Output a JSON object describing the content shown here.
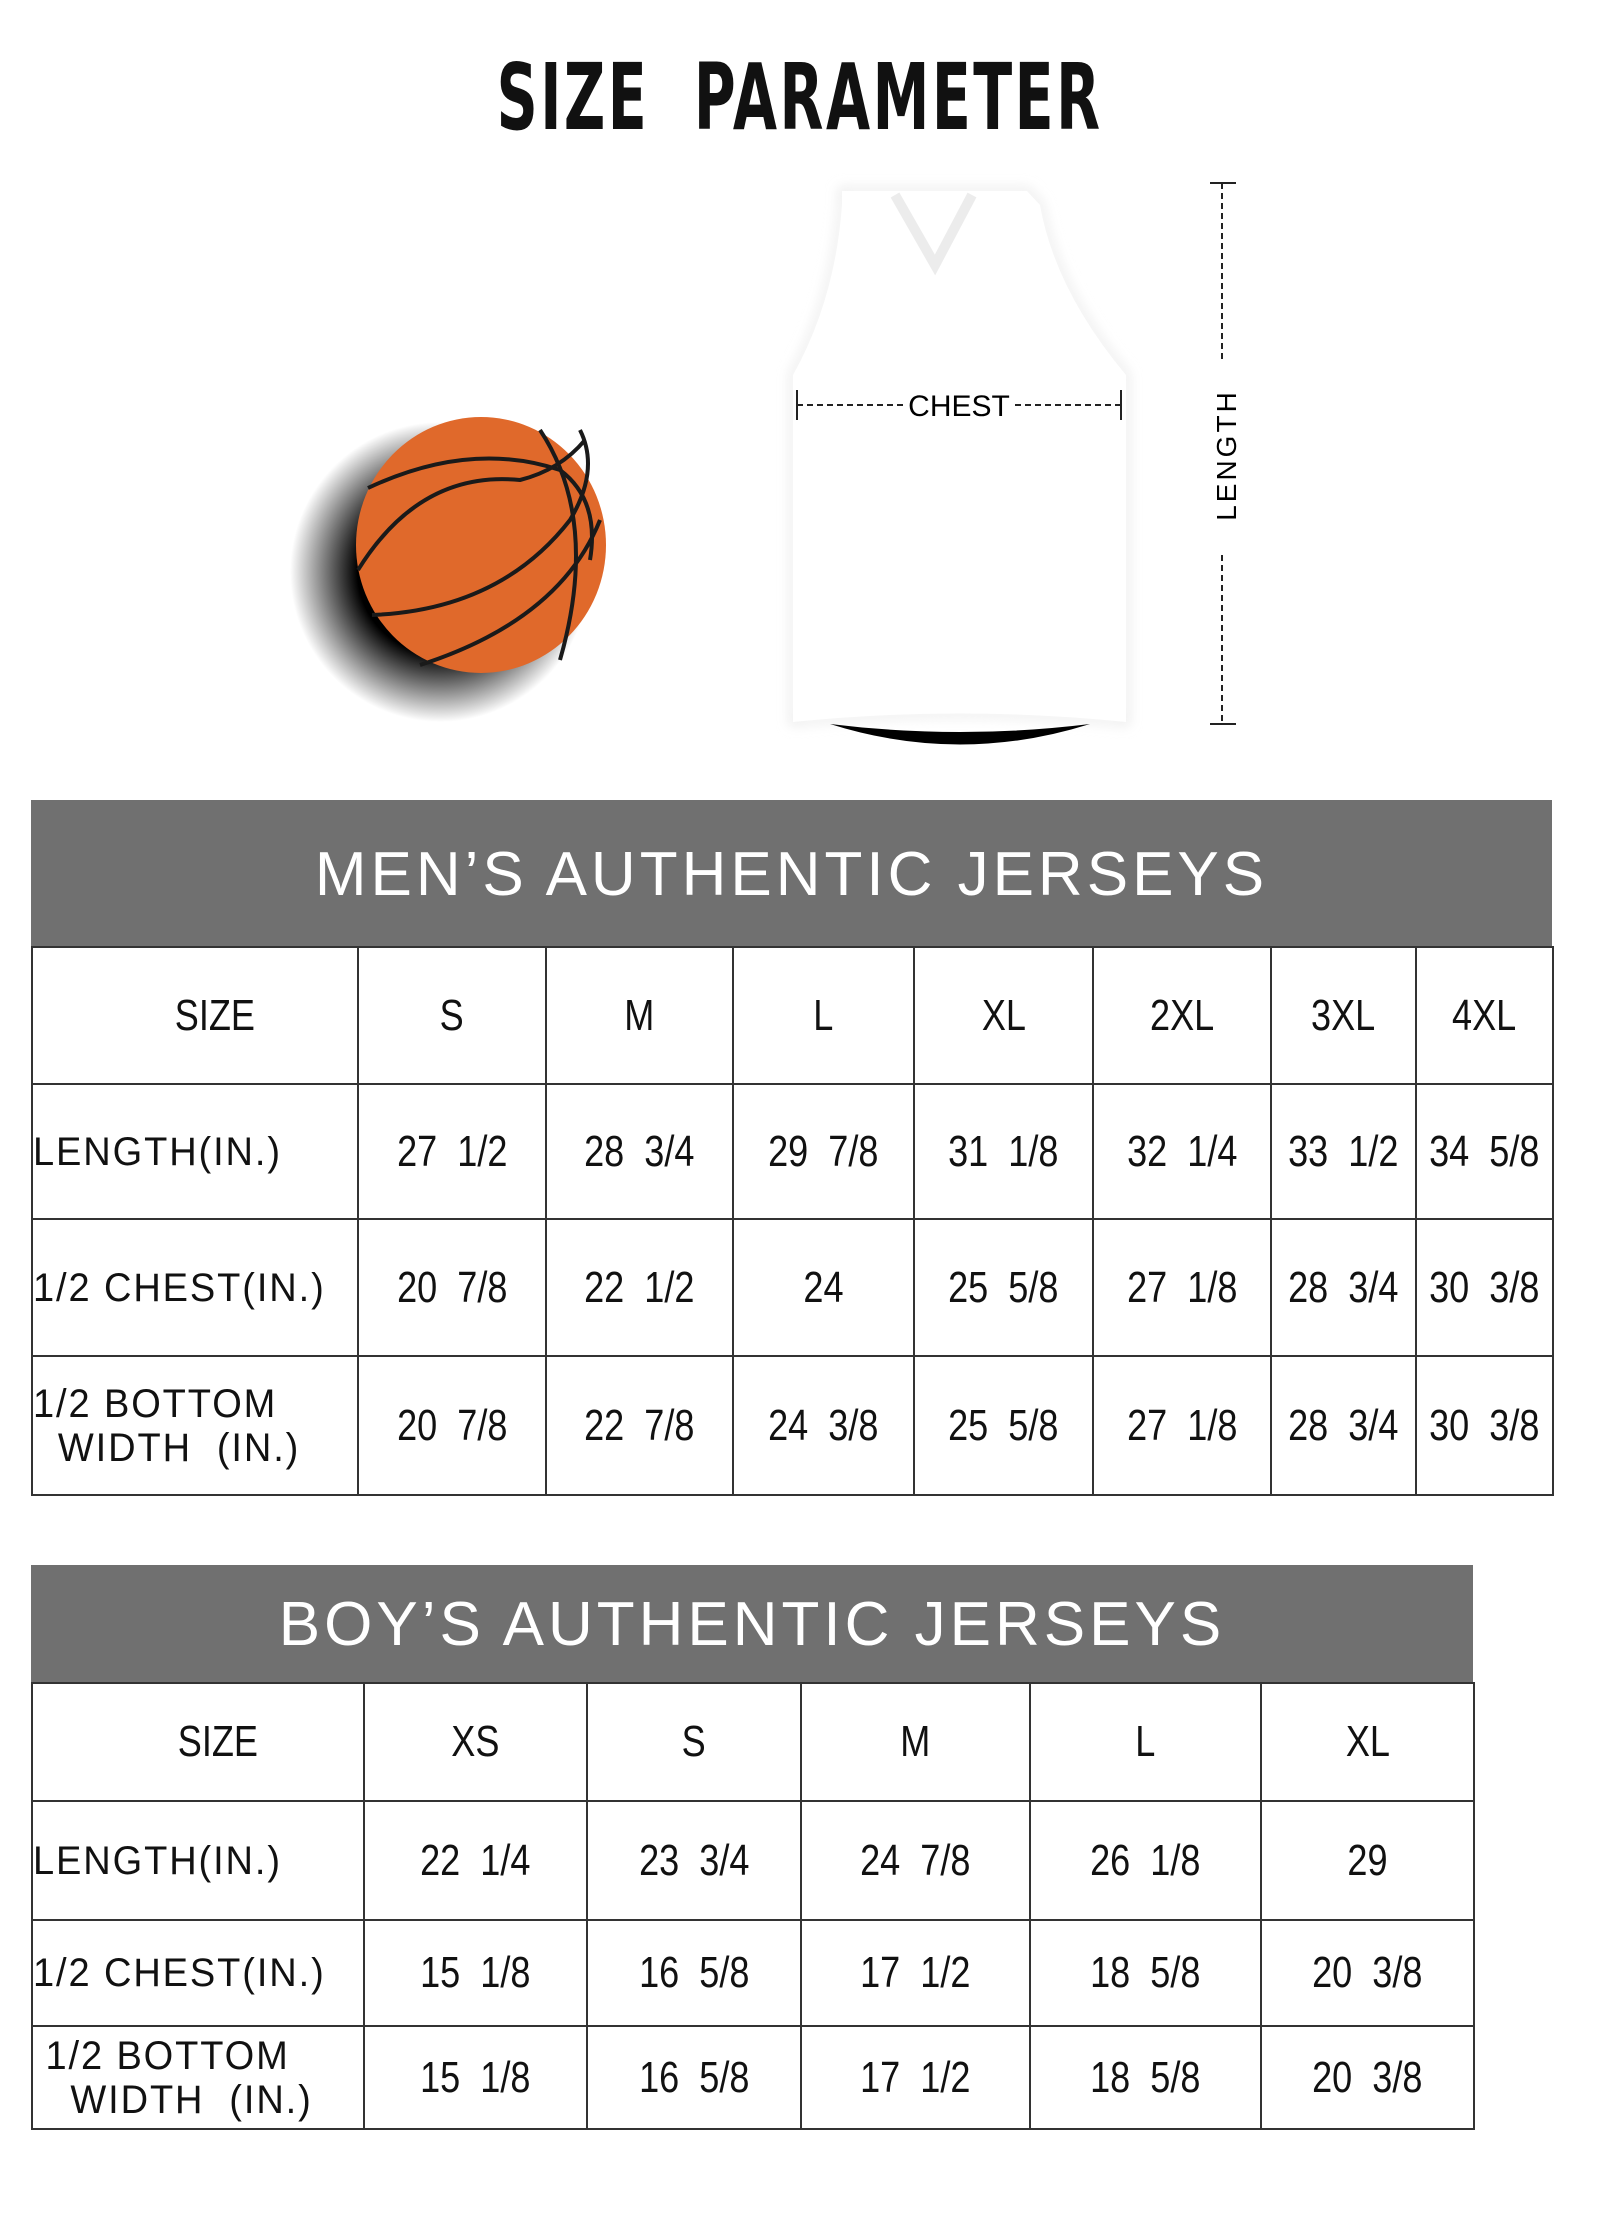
{
  "title": "SIZE  PARAMETER",
  "diagram": {
    "chest_label": "CHEST",
    "length_label": "LENGTH",
    "ball_color": "#e0692b",
    "header_color": "#707070"
  },
  "men": {
    "title": "MEN’S AUTHENTIC JERSEYS",
    "header": [
      "SIZE",
      "S",
      "M",
      "L",
      "XL",
      "2XL",
      "3XL",
      "4XL"
    ],
    "rows": [
      [
        "LENGTH(IN.)",
        "27  1/2",
        "28  3/4",
        "29  7/8",
        "31  1/8",
        "32  1/4",
        "33  1/2",
        "34  5/8"
      ],
      [
        "1/2 CHEST(IN.)",
        "20  7/8",
        "22  1/2",
        "24",
        "25  5/8",
        "27  1/8",
        "28  3/4",
        "30  3/8"
      ],
      [
        "1/2 BOTTOM\n  WIDTH  (IN.)",
        "20  7/8",
        "22  7/8",
        "24  3/8",
        "25  5/8",
        "27  1/8",
        "28  3/4",
        "30  3/8"
      ]
    ]
  },
  "boys": {
    "title": "BOY’S AUTHENTIC JERSEYS",
    "header": [
      "SIZE",
      "XS",
      "S",
      "M",
      "L",
      "XL"
    ],
    "rows": [
      [
        "LENGTH(IN.)",
        "22  1/4",
        "23  3/4",
        "24  7/8",
        "26  1/8",
        "29"
      ],
      [
        "1/2 CHEST(IN.)",
        "15  1/8",
        "16  5/8",
        "17  1/2",
        "18  5/8",
        "20  3/8"
      ],
      [
        " 1/2 BOTTOM\n   WIDTH  (IN.)",
        "15  1/8",
        "16  5/8",
        "17  1/2",
        "18  5/8",
        "20  3/8"
      ]
    ]
  }
}
